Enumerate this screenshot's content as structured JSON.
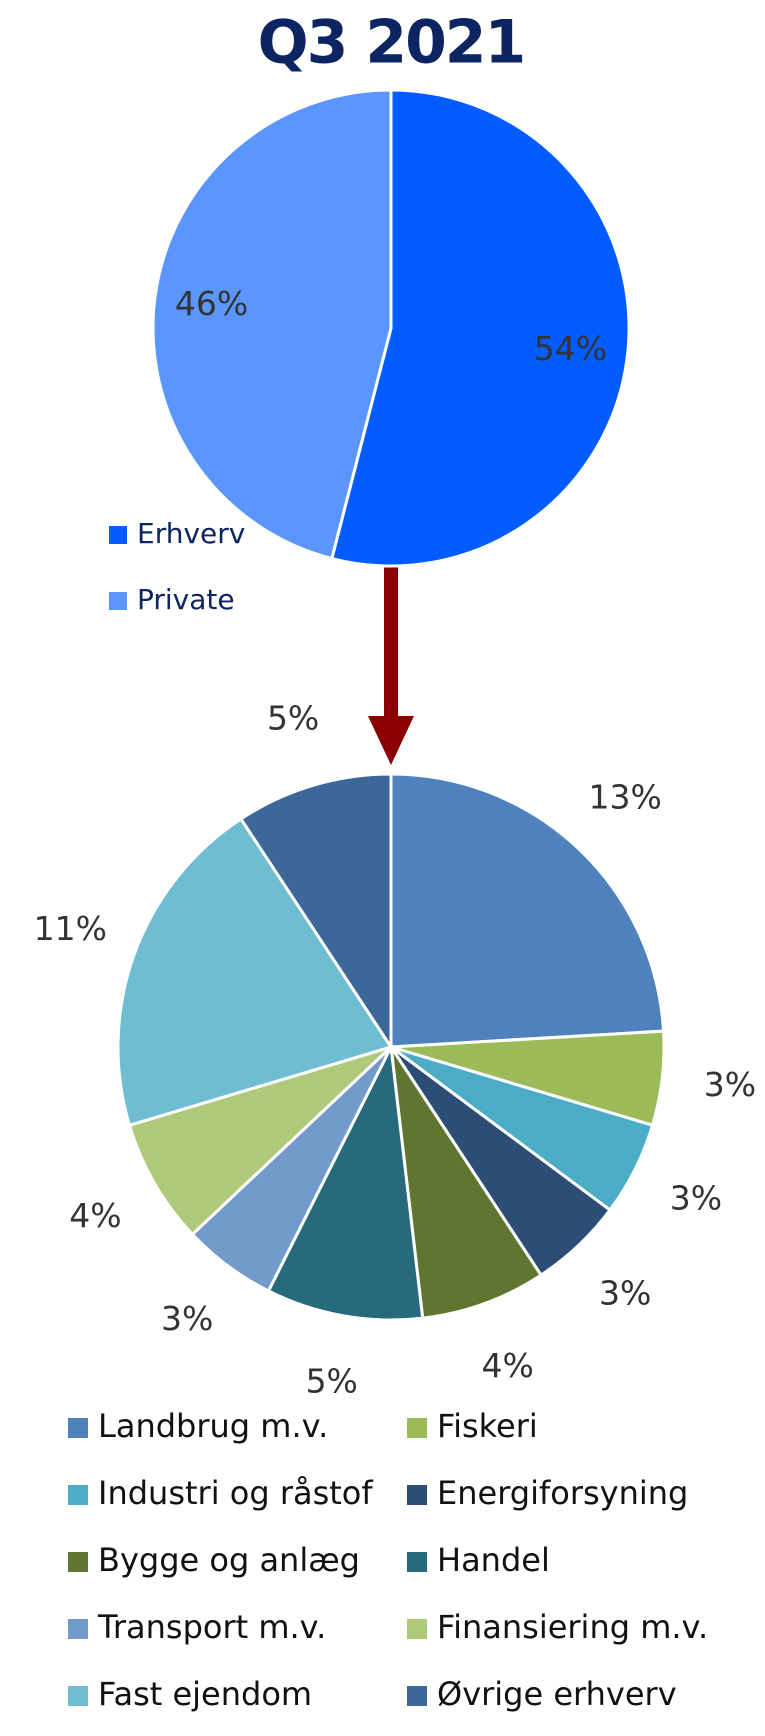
{
  "chart_data": [
    {
      "type": "pie",
      "title": "Q3 2021",
      "categories": [
        "Erhverv",
        "Private"
      ],
      "values": [
        54,
        46
      ],
      "value_labels": [
        "54%",
        "46%"
      ],
      "colors": [
        "#035cff",
        "#5b96ff"
      ]
    },
    {
      "type": "pie",
      "categories": [
        "Landbrug m.v.",
        "Fiskeri",
        "Industri og råstof",
        "Energiforsyning",
        "Bygge og anlæg",
        "Handel",
        "Transport m.v.",
        "Finansiering m.v.",
        "Fast ejendom",
        "Øvrige erhverv"
      ],
      "values": [
        13,
        3,
        3,
        3,
        4,
        5,
        3,
        4,
        11,
        5
      ],
      "value_labels": [
        "13%",
        "3%",
        "3%",
        "3%",
        "4%",
        "5%",
        "3%",
        "4%",
        "11%",
        "5%"
      ],
      "colors": [
        "#4f81bd",
        "#9bbb59",
        "#4bacc6",
        "#2c4d75",
        "#5f7530",
        "#276a7c",
        "#729aca",
        "#afc97a",
        "#6fbdd1",
        "#3c6899"
      ]
    }
  ]
}
